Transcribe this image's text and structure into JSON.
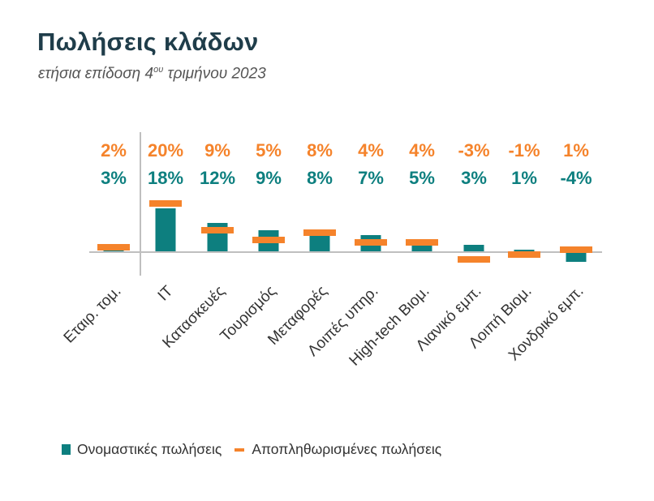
{
  "title": "Πωλήσεις κλάδων",
  "subtitle_main": "ετήσια επίδοση 4",
  "subtitle_sup": "ου",
  "subtitle_end": " τριμήνου 2023",
  "colors": {
    "nominal": "#0d7f7f",
    "deflated": "#f5832b",
    "axis": "#bfbfbf"
  },
  "chart_data": {
    "type": "bar",
    "categories": [
      "Εταιρ. τομ.",
      "IT",
      "Κατασκευές",
      "Τουρισμός",
      "Μεταφορές",
      "Λοιπές υπηρ.",
      "High-tech Βιομ.",
      "Λιανικό εμπ.",
      "Λοιπή Βιομ.",
      "Χονδρικό εμπ."
    ],
    "series": [
      {
        "name": "Ονομαστικές πωλήσεις",
        "values": [
          3,
          18,
          12,
          9,
          8,
          7,
          5,
          3,
          1,
          -4
        ],
        "labels": [
          "3%",
          "18%",
          "12%",
          "9%",
          "8%",
          "7%",
          "5%",
          "3%",
          "1%",
          "-4%"
        ]
      },
      {
        "name": "Αποπληθωρισμένες πωλήσεις",
        "values": [
          2,
          20,
          9,
          5,
          8,
          4,
          4,
          -3,
          -1,
          1
        ],
        "labels": [
          "2%",
          "20%",
          "9%",
          "5%",
          "8%",
          "4%",
          "4%",
          "-3%",
          "-1%",
          "1%"
        ]
      }
    ],
    "legend_position": "bottom"
  },
  "legend": {
    "nominal": "Ονομαστικές πωλήσεις",
    "deflated": "Αποπληθωρισμένες πωλήσεις"
  }
}
